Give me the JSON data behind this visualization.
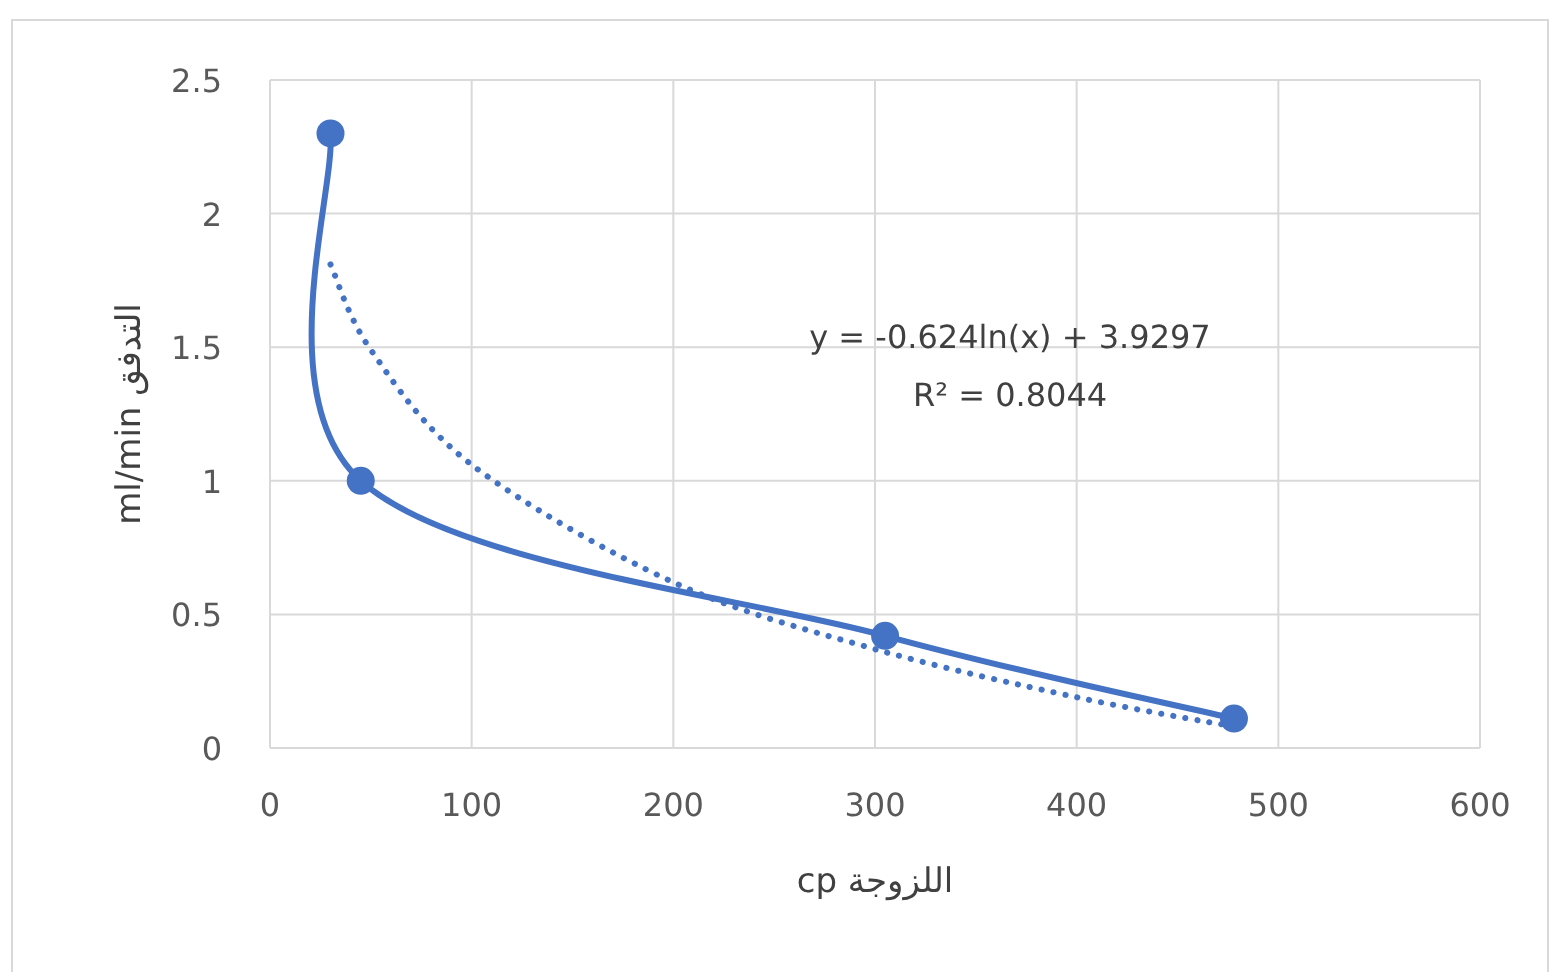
{
  "chart_data": {
    "type": "line",
    "xlabel": "اللزوجة cp",
    "ylabel": "التدفق ml/min",
    "xlim": [
      0,
      600
    ],
    "xticks": [
      0,
      100,
      200,
      300,
      400,
      500,
      600
    ],
    "ylim": [
      0,
      2.5
    ],
    "yticks": [
      0,
      0.5,
      1,
      1.5,
      2,
      2.5
    ],
    "grid": true,
    "series": [
      {
        "color": "#4472c4",
        "marker": "circle",
        "line_style": "solid",
        "x": [
          30,
          45,
          305,
          478
        ],
        "values": [
          2.3,
          1.0,
          0.42,
          0.11
        ]
      },
      {
        "color": "#4472c4",
        "marker": "none",
        "line_style": "dotted",
        "x": [
          30,
          50,
          100,
          200,
          300,
          400,
          478
        ],
        "values": [
          1.81,
          1.49,
          1.06,
          0.62,
          0.37,
          0.19,
          0.08
        ]
      }
    ],
    "annotations": [
      "y = -0.624ln(x) + 3.9297",
      "R² = 0.8044"
    ]
  }
}
